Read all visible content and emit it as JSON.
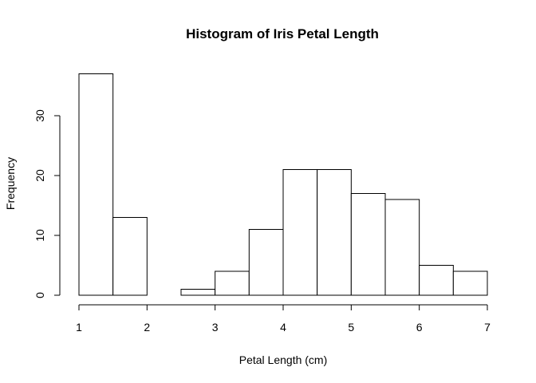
{
  "chart_data": {
    "type": "bar",
    "title": "Histogram of Iris Petal Length",
    "xlabel": "Petal Length (cm)",
    "ylabel": "Frequency",
    "bins": [
      {
        "start": 1.0,
        "end": 1.5,
        "count": 37
      },
      {
        "start": 1.5,
        "end": 2.0,
        "count": 13
      },
      {
        "start": 2.0,
        "end": 2.5,
        "count": 0
      },
      {
        "start": 2.5,
        "end": 3.0,
        "count": 1
      },
      {
        "start": 3.0,
        "end": 3.5,
        "count": 4
      },
      {
        "start": 3.5,
        "end": 4.0,
        "count": 11
      },
      {
        "start": 4.0,
        "end": 4.5,
        "count": 21
      },
      {
        "start": 4.5,
        "end": 5.0,
        "count": 21
      },
      {
        "start": 5.0,
        "end": 5.5,
        "count": 17
      },
      {
        "start": 5.5,
        "end": 6.0,
        "count": 16
      },
      {
        "start": 6.0,
        "end": 6.5,
        "count": 5
      },
      {
        "start": 6.5,
        "end": 7.0,
        "count": 4
      }
    ],
    "xlim": [
      1,
      7
    ],
    "ylim": [
      0,
      37
    ],
    "xticks": [
      1,
      2,
      3,
      4,
      5,
      6,
      7
    ],
    "yticks": [
      0,
      10,
      20,
      30
    ],
    "grid": false,
    "bar_fill": "#ffffff",
    "bar_stroke": "#000000"
  }
}
